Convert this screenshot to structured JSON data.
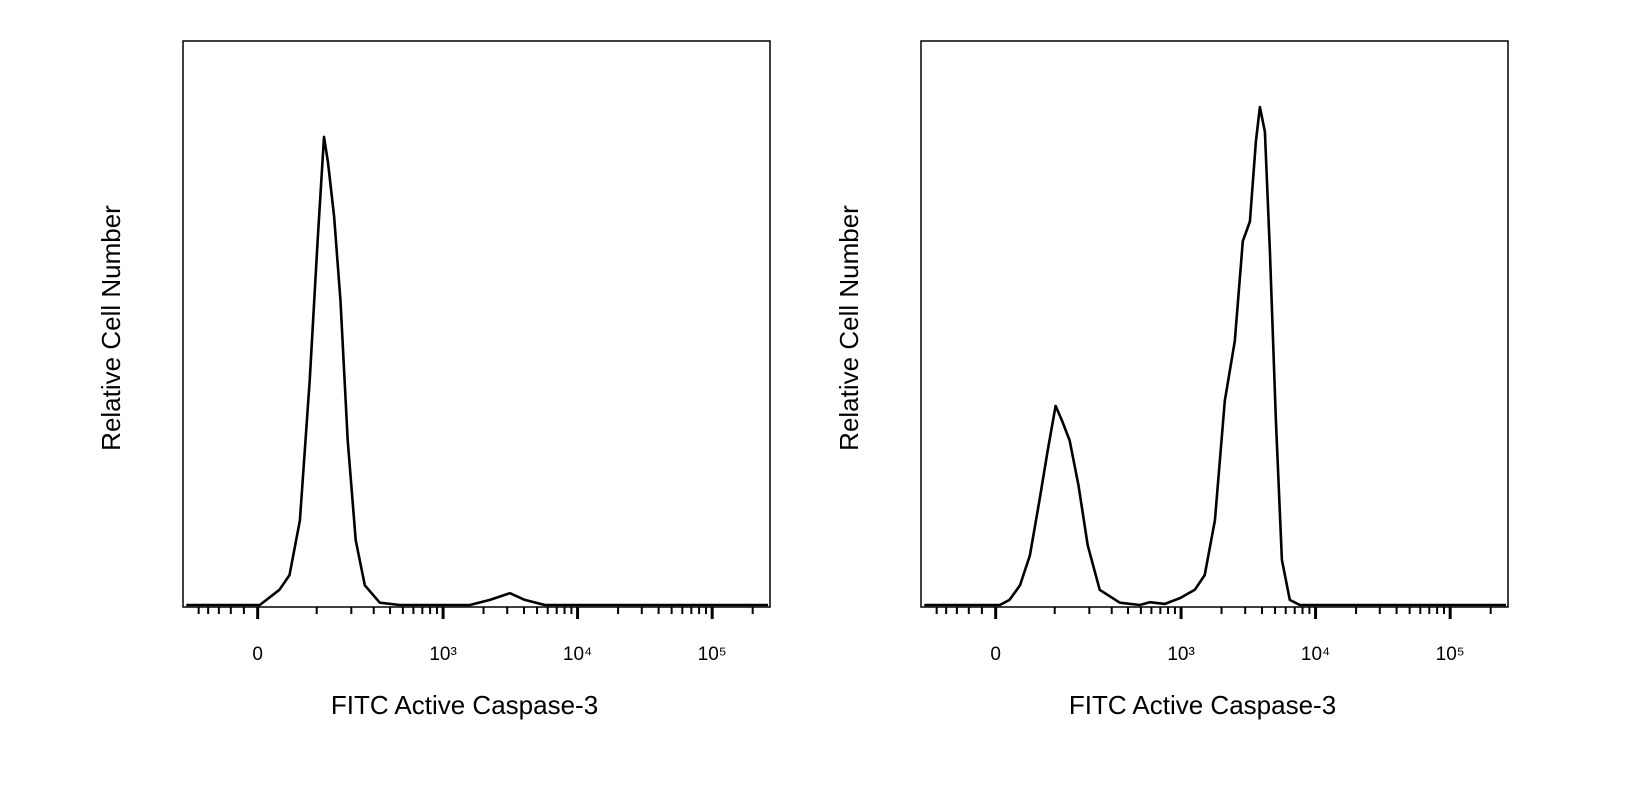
{
  "chart_data": [
    {
      "type": "line",
      "xlabel": "FITC Active Caspase-3",
      "ylabel": "Relative Cell Number",
      "xscale": "biexponential",
      "color": "#000000",
      "x": [
        -130,
        -42,
        3,
        32,
        48,
        66,
        85,
        102,
        117,
        127,
        144,
        163,
        187,
        217,
        256,
        334,
        474,
        1580,
        2230,
        3140,
        4060,
        5710,
        260000
      ],
      "values": [
        0,
        0,
        0,
        2.7,
        5.3,
        15,
        39.8,
        64.5,
        83,
        78.6,
        68.9,
        53.9,
        29.2,
        11.5,
        3.5,
        0.4,
        0,
        0,
        0.9,
        2.1,
        0.9,
        0,
        0
      ],
      "xlim": [
        -139,
        269000
      ],
      "ylim": [
        0,
        100
      ],
      "xticks": [
        0,
        {
          "value": 1000,
          "label": "10³"
        },
        {
          "value": 10000,
          "label": "10⁴"
        },
        {
          "value": 100000,
          "label": "10⁵"
        }
      ],
      "xminorticks": [
        -100,
        -80,
        -60,
        -40,
        -20,
        100,
        200,
        300,
        400,
        500,
        600,
        700,
        800,
        900,
        2000,
        3000,
        4000,
        5000,
        6000,
        7000,
        8000,
        9000,
        20000,
        30000,
        40000,
        50000,
        60000,
        70000,
        80000,
        90000,
        200000
      ]
    },
    {
      "type": "line",
      "xlabel": "FITC Active Caspase-3",
      "ylabel": "Relative Cell Number",
      "xscale": "biexponential",
      "color": "#000000",
      "x": [
        -130,
        6,
        20,
        36,
        52,
        69,
        85,
        102,
        117,
        137,
        163,
        194,
        242,
        346,
        491,
        583,
        757,
        979,
        1265,
        1500,
        1785,
        2115,
        2510,
        2880,
        3250,
        3600,
        3855,
        4200,
        4580,
        5070,
        5620,
        6440,
        7640,
        260000
      ],
      "values": [
        0,
        0,
        0.9,
        3.5,
        8.8,
        18.6,
        27.4,
        35.3,
        32.7,
        29.2,
        21.2,
        10.6,
        2.7,
        0.4,
        0,
        0.5,
        0.2,
        1.2,
        2.7,
        5.3,
        15,
        36.2,
        46.8,
        64.5,
        68,
        82.2,
        88.3,
        83.9,
        62.7,
        32.7,
        8,
        0.9,
        0,
        0
      ],
      "xlim": [
        -139,
        269000
      ],
      "ylim": [
        0,
        100
      ],
      "xticks": [
        0,
        {
          "value": 1000,
          "label": "10³"
        },
        {
          "value": 10000,
          "label": "10⁴"
        },
        {
          "value": 100000,
          "label": "10⁵"
        }
      ],
      "xminorticks": [
        -100,
        -80,
        -60,
        -40,
        -20,
        100,
        200,
        300,
        400,
        500,
        600,
        700,
        800,
        900,
        2000,
        3000,
        4000,
        5000,
        6000,
        7000,
        8000,
        9000,
        20000,
        30000,
        40000,
        50000,
        60000,
        70000,
        80000,
        90000,
        200000
      ]
    }
  ]
}
